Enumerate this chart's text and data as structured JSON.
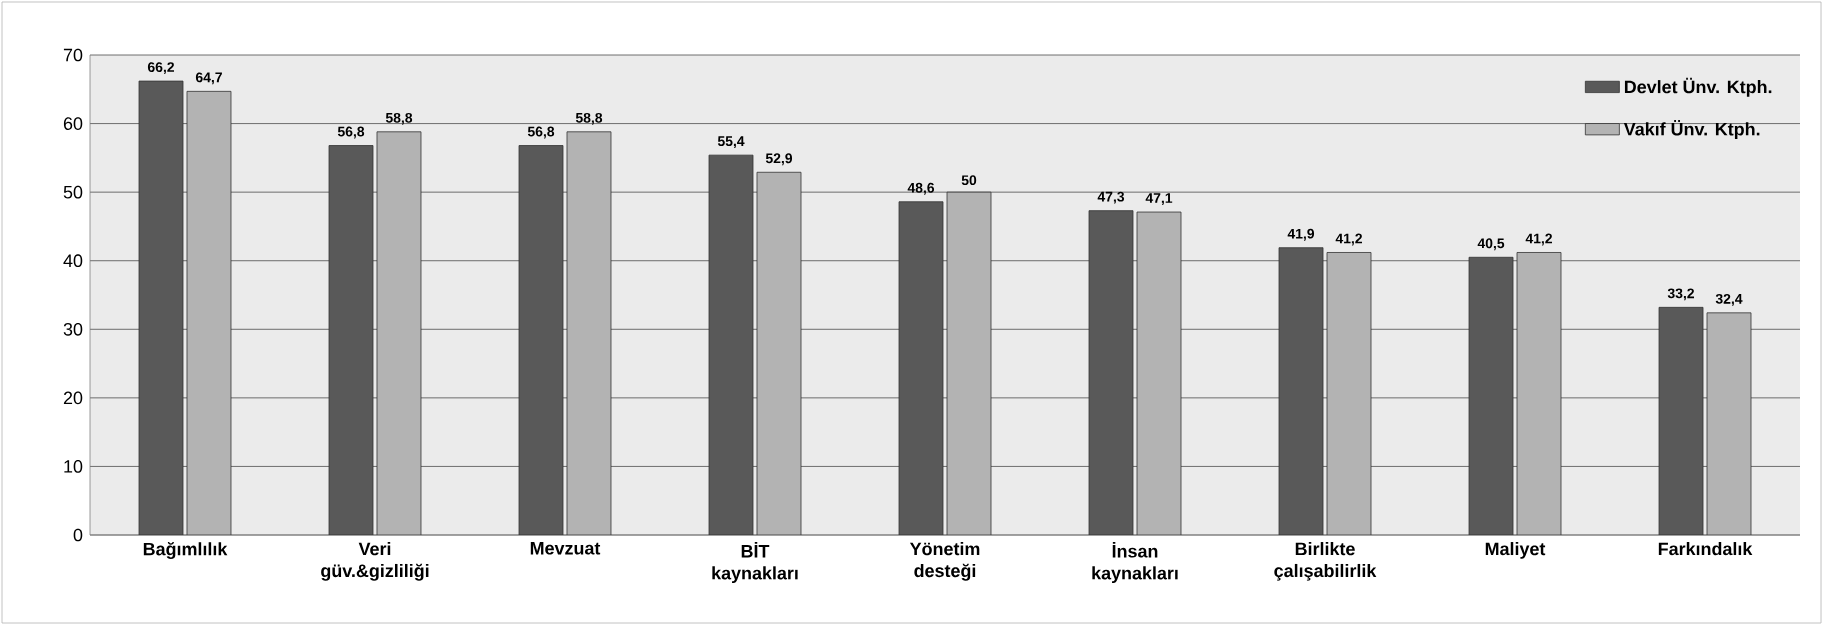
{
  "chart_data": {
    "type": "bar",
    "categories": [
      "Bağımlılık",
      "Veri güv.&gizliliği",
      "Mevzuat",
      "BİT kaynakları",
      "Yönetim desteği",
      "İnsan kaynakları",
      "Birlikte çalışabilirlik",
      "Maliyet",
      "Farkındalık"
    ],
    "series": [
      {
        "name": "Devlet Ünv. Ktph.",
        "color": "#595959",
        "values": [
          66.2,
          56.8,
          56.8,
          55.4,
          48.6,
          47.3,
          41.9,
          40.5,
          33.2
        ],
        "value_labels": [
          "66,2",
          "56,8",
          "56,8",
          "55,4",
          "48,6",
          "47,3",
          "41,9",
          "40,5",
          "33,2"
        ]
      },
      {
        "name": "Vakıf Ünv. Ktph.",
        "color": "#b3b3b3",
        "values": [
          64.7,
          58.8,
          58.8,
          52.9,
          50,
          47.1,
          41.2,
          41.2,
          32.4
        ],
        "value_labels": [
          "64,7",
          "58,8",
          "58,8",
          "52,9",
          "50",
          "47,1",
          "41,2",
          "41,2",
          "32,4"
        ]
      }
    ],
    "ylim": [
      0,
      70
    ],
    "yticks": [
      0,
      10,
      20,
      30,
      40,
      50,
      60,
      70
    ],
    "grid": "y",
    "legend": "top right"
  }
}
